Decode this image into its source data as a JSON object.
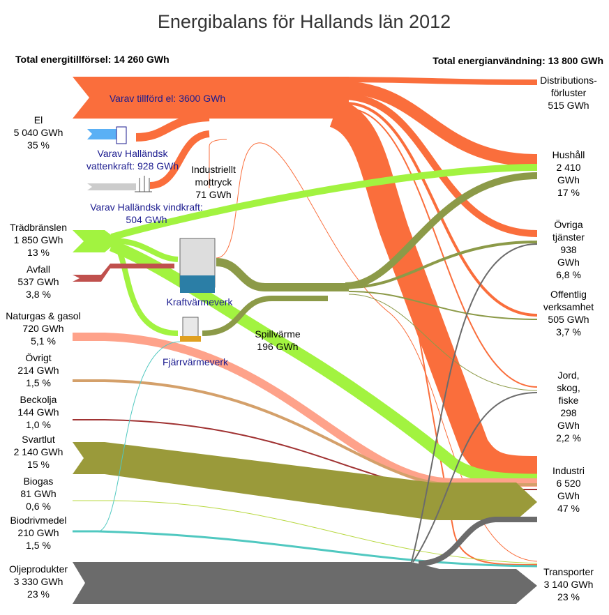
{
  "title": "Energibalans för Hallands län 2012",
  "supply_total": "Total energitillförsel: 14 260 GWh",
  "use_total": "Total energianvändning: 13 800 GWh",
  "sources": [
    {
      "name": "El",
      "value": "5 040 GWh",
      "share": "35 %"
    },
    {
      "name": "Trädbränslen",
      "value": "1 850 GWh",
      "share": "13 %"
    },
    {
      "name": "Avfall",
      "value": "537 GWh",
      "share": "3,8 %"
    },
    {
      "name": "Naturgas & gasol",
      "value": "720 GWh",
      "share": "5,1 %"
    },
    {
      "name": "Övrigt",
      "value": "214 GWh",
      "share": "1,5 %"
    },
    {
      "name": "Beckolja",
      "value": "144 GWh",
      "share": "1,0 %"
    },
    {
      "name": "Svartlut",
      "value": "2 140 GWh",
      "share": "15 %"
    },
    {
      "name": "Biogas",
      "value": "81 GWh",
      "share": "0,6 %"
    },
    {
      "name": "Biodrivmedel",
      "value": "210 GWh",
      "share": "1,5 %"
    },
    {
      "name": "Oljeprodukter",
      "value": "3 330 GWh",
      "share": "23 %"
    }
  ],
  "uses": [
    {
      "name": "Distributions-\nförluster",
      "value": "515 GWh"
    },
    {
      "name": "Hushåll",
      "value": "2 410 GWh",
      "share": "17 %"
    },
    {
      "name": "Övriga\ntjänster",
      "value": "938 GWh",
      "share": "6,8 %"
    },
    {
      "name": "Offentlig\nverksamhet",
      "value": "505 GWh",
      "share": "3,7 %"
    },
    {
      "name": "Jord, skog,\nfiske",
      "value": "298 GWh",
      "share": "2,2 %"
    },
    {
      "name": "Industri",
      "value": "6 520 GWh",
      "share": "47 %"
    },
    {
      "name": "Transporter",
      "value": "3 140 GWh",
      "share": "23 %"
    }
  ],
  "annotations": {
    "el_supplied": "Varav tillförd el: 3600 GWh",
    "hydro": "Varav Halländsk\nvattenkraft: 928 GWh",
    "wind": "Varav Halländsk vindkraft:\n504 GWh",
    "backpressure": "Industriellt\nmottryck\n71 GWh",
    "chp": "Kraftvärmeverk",
    "district_heating": "Fjärrvärmeverk",
    "waste_heat": "Spillvärme\n196 GWh"
  }
}
